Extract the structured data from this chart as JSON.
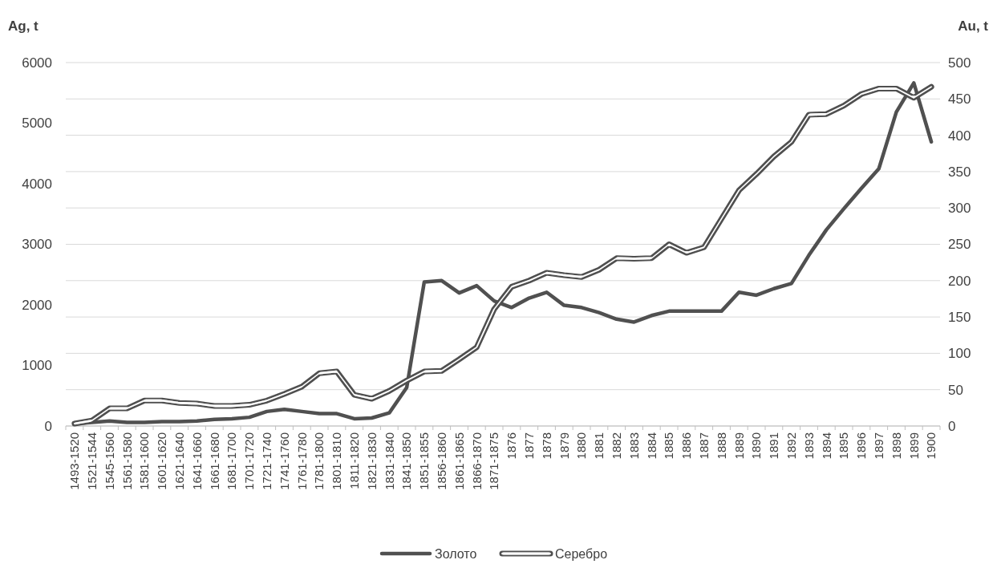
{
  "chart_data": {
    "type": "line",
    "ylabel": "Ag, t",
    "y2label": "Au, t",
    "categories": [
      "1493-1520",
      "1521-1544",
      "1545-1560",
      "1561-1580",
      "1581-1600",
      "1601-1620",
      "1621-1640",
      "1641-1660",
      "1661-1680",
      "1681-1700",
      "1701-1720",
      "1721-1740",
      "1741-1760",
      "1761-1780",
      "1781-1800",
      "1801-1810",
      "1811-1820",
      "1821-1830",
      "1831-1840",
      "1841-1850",
      "1851-1855",
      "1856-1860",
      "1861-1865",
      "1866-1870",
      "1871-1875",
      "1876",
      "1877",
      "1878",
      "1879",
      "1880",
      "1881",
      "1882",
      "1883",
      "1884",
      "1885",
      "1886",
      "1887",
      "1888",
      "1889",
      "1890",
      "1891",
      "1892",
      "1893",
      "1894",
      "1895",
      "1896",
      "1897",
      "1898",
      "1899",
      "1900"
    ],
    "series": [
      {
        "name": "Золото",
        "color": "#505050",
        "axis": "y2",
        "values": [
          3,
          5,
          7,
          5,
          5,
          6,
          6,
          7,
          9,
          10,
          12,
          20,
          23,
          20,
          17,
          17,
          10,
          11,
          18,
          53,
          198,
          200,
          183,
          193,
          172,
          163,
          176,
          184,
          166,
          163,
          156,
          147,
          143,
          152,
          158,
          158,
          158,
          158,
          184,
          180,
          189,
          196,
          235,
          270,
          299,
          327,
          354,
          432,
          472,
          391
        ]
      },
      {
        "name": "Серебро",
        "color": "#505050",
        "values": [
          40,
          90,
          290,
          290,
          420,
          420,
          380,
          370,
          330,
          330,
          350,
          420,
          530,
          650,
          870,
          900,
          515,
          450,
          580,
          750,
          900,
          910,
          1100,
          1300,
          1930,
          2300,
          2400,
          2530,
          2490,
          2460,
          2580,
          2770,
          2760,
          2770,
          3000,
          2860,
          2950,
          3420,
          3890,
          4160,
          4450,
          4690,
          5140,
          5150,
          5290,
          5480,
          5570,
          5570,
          5420,
          5600
        ]
      }
    ],
    "ylim": [
      0,
      6000
    ],
    "yticks": [
      0,
      1000,
      2000,
      3000,
      4000,
      5000,
      6000
    ],
    "y2lim": [
      0,
      500
    ],
    "y2ticks": [
      0,
      50,
      100,
      150,
      200,
      250,
      300,
      350,
      400,
      450,
      500
    ],
    "grid": true,
    "legend": "bottom",
    "marker": "none"
  }
}
